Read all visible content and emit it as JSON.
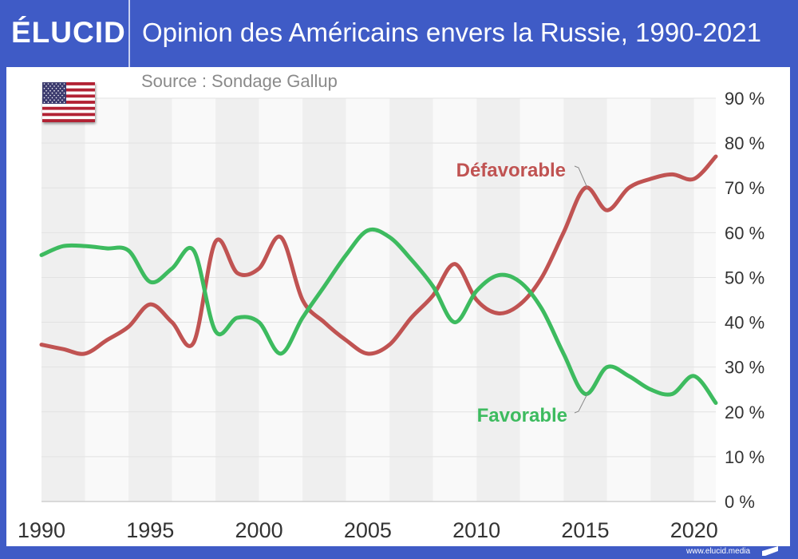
{
  "header": {
    "logo": "ÉLUCID",
    "title": "Opinion des Américains envers la Russie, 1990-2021"
  },
  "source": "Source : Sondage Gallup",
  "footer": {
    "url": "www.elucid.media"
  },
  "colors": {
    "brand": "#3f5bc6",
    "favorable": "#3dbb5f",
    "unfavorable": "#c05352"
  },
  "chart_data": {
    "type": "line",
    "title": "Opinion des Américains envers la Russie, 1990-2021",
    "xlabel": "",
    "ylabel": "",
    "xlim": [
      1990,
      2021
    ],
    "ylim": [
      0,
      90
    ],
    "grid": true,
    "x_ticks": [
      "1990",
      "1995",
      "2000",
      "2005",
      "2010",
      "2015",
      "2020"
    ],
    "y_ticks": [
      "0 %",
      "10 %",
      "20 %",
      "30 %",
      "40 %",
      "50 %",
      "60 %",
      "70 %",
      "80 %",
      "90 %"
    ],
    "x": [
      1990,
      1991,
      1992,
      1993,
      1994,
      1995,
      1996,
      1997,
      1998,
      1999,
      2000,
      2001,
      2002,
      2003,
      2004,
      2005,
      2006,
      2007,
      2008,
      2009,
      2010,
      2011,
      2012,
      2013,
      2014,
      2015,
      2016,
      2017,
      2018,
      2019,
      2020,
      2021
    ],
    "series": [
      {
        "name": "Défavorable",
        "color": "#c05352",
        "values": [
          35,
          34,
          33,
          36,
          39,
          44,
          40,
          35.5,
          58,
          51,
          52,
          59,
          45,
          40,
          36,
          33,
          35,
          41,
          46,
          53,
          45,
          42,
          44,
          50,
          60,
          70,
          65,
          70,
          72,
          73,
          72,
          77
        ]
      },
      {
        "name": "Favorable",
        "color": "#3dbb5f",
        "values": [
          55,
          57,
          57,
          56.5,
          56,
          49,
          52,
          56,
          38,
          41,
          40,
          33,
          41,
          48,
          55,
          60.5,
          59,
          54,
          48,
          40,
          47,
          50.5,
          49,
          43,
          33,
          24,
          30,
          28,
          25,
          24,
          28,
          22
        ]
      }
    ]
  }
}
